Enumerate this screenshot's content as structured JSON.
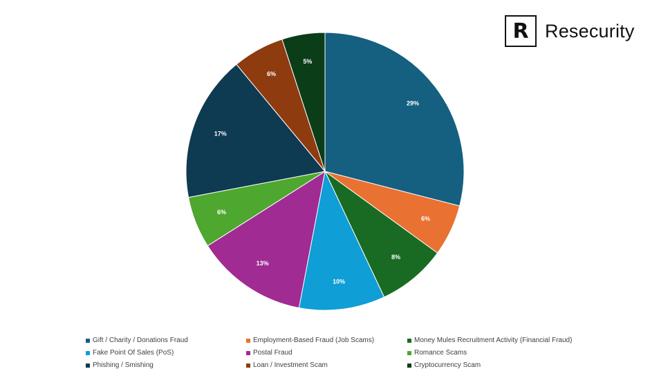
{
  "brand": {
    "logo_text": "Resecurity",
    "logo_mark": "R"
  },
  "chart_data": {
    "type": "pie",
    "title": "",
    "start_angle_deg": 0,
    "direction": "clockwise",
    "categories": [
      "Gift / Charity / Donations Fraud",
      "Employment-Based Fraud (Job Scams)",
      "Money Mules Recruitment Activity (Financial Fraud)",
      "Fake Point Of Sales (PoS)",
      "Postal Fraud",
      "Romance Scams",
      "Phishing / Smishing",
      "Loan / Investment Scam",
      "Cryptocurrency Scam"
    ],
    "values": [
      29,
      6,
      8,
      10,
      13,
      6,
      17,
      6,
      5
    ],
    "data_labels": [
      "29%",
      "6%",
      "8%",
      "10%",
      "13%",
      "6%",
      "17%",
      "6%",
      "5%"
    ],
    "colors": [
      "#155f80",
      "#e97132",
      "#196b24",
      "#0f9ed5",
      "#a02b93",
      "#4ea72e",
      "#0e3a52",
      "#8e3b0f",
      "#0b3d19"
    ],
    "legend_position": "bottom"
  }
}
